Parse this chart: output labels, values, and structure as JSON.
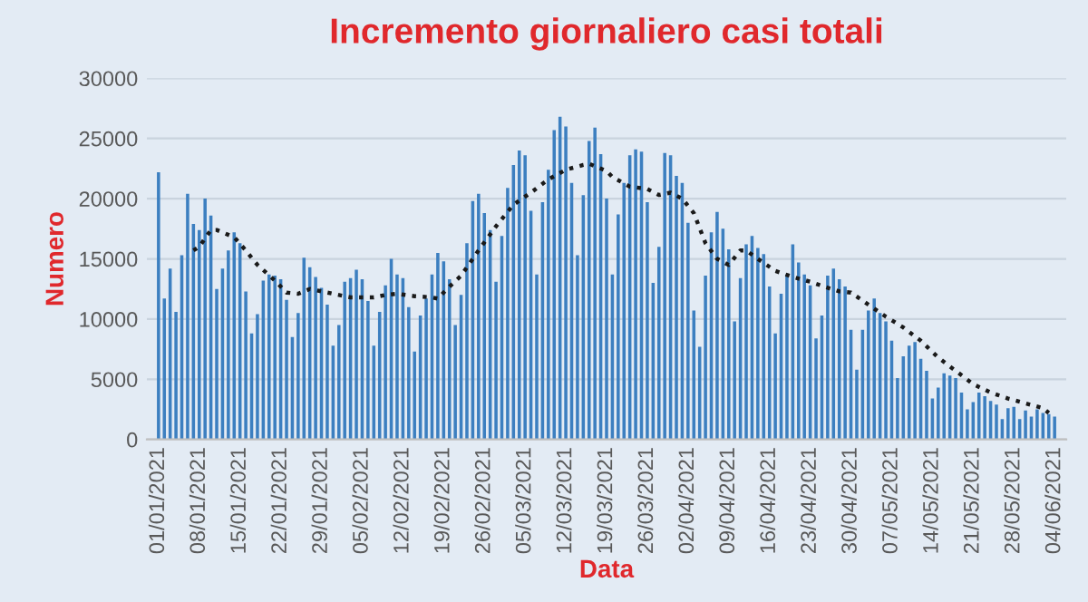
{
  "chart_data": {
    "type": "bar",
    "title": "Incremento giornaliero casi totali",
    "xlabel": "Data",
    "ylabel": "Numero",
    "ylim": [
      0,
      30000
    ],
    "yticks": [
      0,
      5000,
      10000,
      15000,
      20000,
      25000,
      30000
    ],
    "grid": "y",
    "legend": false,
    "xlim": [
      "2020-12-30",
      "2021-06-06"
    ],
    "xticks": [
      {
        "value": "2021-01-01",
        "label": "01/01/2021"
      },
      {
        "value": "2021-01-08",
        "label": "08/01/2021"
      },
      {
        "value": "2021-01-15",
        "label": "15/01/2021"
      },
      {
        "value": "2021-01-22",
        "label": "22/01/2021"
      },
      {
        "value": "2021-01-29",
        "label": "29/01/2021"
      },
      {
        "value": "2021-02-05",
        "label": "05/02/2021"
      },
      {
        "value": "2021-02-12",
        "label": "12/02/2021"
      },
      {
        "value": "2021-02-19",
        "label": "19/02/2021"
      },
      {
        "value": "2021-02-26",
        "label": "26/02/2021"
      },
      {
        "value": "2021-03-05",
        "label": "05/03/2021"
      },
      {
        "value": "2021-03-12",
        "label": "12/03/2021"
      },
      {
        "value": "2021-03-19",
        "label": "19/03/2021"
      },
      {
        "value": "2021-03-26",
        "label": "26/03/2021"
      },
      {
        "value": "2021-04-02",
        "label": "02/04/2021"
      },
      {
        "value": "2021-04-09",
        "label": "09/04/2021"
      },
      {
        "value": "2021-04-16",
        "label": "16/04/2021"
      },
      {
        "value": "2021-04-23",
        "label": "23/04/2021"
      },
      {
        "value": "2021-04-30",
        "label": "30/04/2021"
      },
      {
        "value": "2021-05-07",
        "label": "07/05/2021"
      },
      {
        "value": "2021-05-14",
        "label": "14/05/2021"
      },
      {
        "value": "2021-05-21",
        "label": "21/05/2021"
      },
      {
        "value": "2021-05-28",
        "label": "28/05/2021"
      },
      {
        "value": "2021-06-04",
        "label": "04/06/2021"
      }
    ],
    "series": [
      {
        "color": "#3c7fc0",
        "x": [
          "2021-01-01",
          "2021-01-02",
          "2021-01-03",
          "2021-01-04",
          "2021-01-05",
          "2021-01-06",
          "2021-01-07",
          "2021-01-08",
          "2021-01-09",
          "2021-01-10",
          "2021-01-11",
          "2021-01-12",
          "2021-01-13",
          "2021-01-14",
          "2021-01-15",
          "2021-01-16",
          "2021-01-17",
          "2021-01-18",
          "2021-01-19",
          "2021-01-20",
          "2021-01-21",
          "2021-01-22",
          "2021-01-23",
          "2021-01-24",
          "2021-01-25",
          "2021-01-26",
          "2021-01-27",
          "2021-01-28",
          "2021-01-29",
          "2021-01-30",
          "2021-01-31",
          "2021-02-01",
          "2021-02-02",
          "2021-02-03",
          "2021-02-04",
          "2021-02-05",
          "2021-02-06",
          "2021-02-07",
          "2021-02-08",
          "2021-02-09",
          "2021-02-10",
          "2021-02-11",
          "2021-02-12",
          "2021-02-13",
          "2021-02-14",
          "2021-02-15",
          "2021-02-16",
          "2021-02-17",
          "2021-02-18",
          "2021-02-19",
          "2021-02-20",
          "2021-02-21",
          "2021-02-22",
          "2021-02-23",
          "2021-02-24",
          "2021-02-25",
          "2021-02-26",
          "2021-02-27",
          "2021-02-28",
          "2021-03-01",
          "2021-03-02",
          "2021-03-03",
          "2021-03-04",
          "2021-03-05",
          "2021-03-06",
          "2021-03-07",
          "2021-03-08",
          "2021-03-09",
          "2021-03-10",
          "2021-03-11",
          "2021-03-12",
          "2021-03-13",
          "2021-03-14",
          "2021-03-15",
          "2021-03-16",
          "2021-03-17",
          "2021-03-18",
          "2021-03-19",
          "2021-03-20",
          "2021-03-21",
          "2021-03-22",
          "2021-03-23",
          "2021-03-24",
          "2021-03-25",
          "2021-03-26",
          "2021-03-27",
          "2021-03-28",
          "2021-03-29",
          "2021-03-30",
          "2021-03-31",
          "2021-04-01",
          "2021-04-02",
          "2021-04-03",
          "2021-04-04",
          "2021-04-05",
          "2021-04-06",
          "2021-04-07",
          "2021-04-08",
          "2021-04-09",
          "2021-04-10",
          "2021-04-11",
          "2021-04-12",
          "2021-04-13",
          "2021-04-14",
          "2021-04-15",
          "2021-04-16",
          "2021-04-17",
          "2021-04-18",
          "2021-04-19",
          "2021-04-20",
          "2021-04-21",
          "2021-04-22",
          "2021-04-23",
          "2021-04-24",
          "2021-04-25",
          "2021-04-26",
          "2021-04-27",
          "2021-04-28",
          "2021-04-29",
          "2021-04-30",
          "2021-05-01",
          "2021-05-02",
          "2021-05-03",
          "2021-05-04",
          "2021-05-05",
          "2021-05-06",
          "2021-05-07",
          "2021-05-08",
          "2021-05-09",
          "2021-05-10",
          "2021-05-11",
          "2021-05-12",
          "2021-05-13",
          "2021-05-14",
          "2021-05-15",
          "2021-05-16",
          "2021-05-17",
          "2021-05-18",
          "2021-05-19",
          "2021-05-20",
          "2021-05-21",
          "2021-05-22",
          "2021-05-23",
          "2021-05-24",
          "2021-05-25",
          "2021-05-26",
          "2021-05-27",
          "2021-05-28",
          "2021-05-29",
          "2021-05-30",
          "2021-05-31",
          "2021-06-01",
          "2021-06-02",
          "2021-06-03",
          "2021-06-04"
        ],
        "values": [
          22200,
          11700,
          14200,
          10600,
          15300,
          20400,
          17900,
          17400,
          20000,
          18600,
          12500,
          14200,
          15700,
          17200,
          16300,
          12300,
          8800,
          10400,
          13200,
          13700,
          13600,
          13300,
          11600,
          8500,
          10500,
          15100,
          14300,
          13500,
          12600,
          11200,
          7800,
          9500,
          13100,
          13400,
          14100,
          13300,
          11500,
          7800,
          10600,
          12800,
          15000,
          13700,
          13400,
          11000,
          7300,
          10300,
          11700,
          13700,
          15500,
          14800,
          13300,
          9500,
          12000,
          16300,
          19800,
          20400,
          18800,
          17400,
          13100,
          16900,
          20900,
          22800,
          24000,
          23600,
          19000,
          13700,
          19700,
          22400,
          25700,
          26800,
          26000,
          21300,
          15300,
          20300,
          24800,
          25900,
          23700,
          20000,
          13700,
          18700,
          21300,
          23600,
          24100,
          23900,
          19700,
          13000,
          16000,
          23800,
          23600,
          21900,
          21300,
          18000,
          10700,
          7700,
          13600,
          17200,
          18900,
          17500,
          15800,
          9800,
          13400,
          16200,
          16900,
          15900,
          15400,
          12700,
          8800,
          12100,
          13700,
          16200,
          14700,
          13700,
          12800,
          8400,
          10300,
          13600,
          14200,
          13300,
          12700,
          9100,
          5800,
          9100,
          10700,
          11700,
          10500,
          9800,
          8200,
          5100,
          6900,
          7800,
          8100,
          6700,
          5700,
          3400,
          4300,
          5500,
          5300,
          5100,
          3900,
          2500,
          3100,
          3900,
          3600,
          3200,
          2900,
          1700,
          2600,
          2700,
          1700,
          2400,
          1900,
          2500,
          2200,
          2100,
          1900
        ]
      },
      {
        "type": "line",
        "color": "#1a1a1a",
        "line_style": "dotted",
        "x": [
          "2021-01-07",
          "2021-01-08",
          "2021-01-10",
          "2021-01-11",
          "2021-01-14",
          "2021-01-16",
          "2021-01-18",
          "2021-01-21",
          "2021-01-23",
          "2021-01-25",
          "2021-01-27",
          "2021-01-30",
          "2021-02-03",
          "2021-02-07",
          "2021-02-09",
          "2021-02-11",
          "2021-02-14",
          "2021-02-17",
          "2021-02-18",
          "2021-02-20",
          "2021-02-22",
          "2021-02-25",
          "2021-02-28",
          "2021-03-03",
          "2021-03-06",
          "2021-03-09",
          "2021-03-12",
          "2021-03-15",
          "2021-03-16",
          "2021-03-19",
          "2021-03-20",
          "2021-03-23",
          "2021-03-26",
          "2021-03-28",
          "2021-03-30",
          "2021-04-01",
          "2021-04-03",
          "2021-04-05",
          "2021-04-07",
          "2021-04-09",
          "2021-04-11",
          "2021-04-12",
          "2021-04-14",
          "2021-04-17",
          "2021-04-20",
          "2021-04-23",
          "2021-04-26",
          "2021-04-28",
          "2021-04-30",
          "2021-05-03",
          "2021-05-06",
          "2021-05-09",
          "2021-05-12",
          "2021-05-15",
          "2021-05-18",
          "2021-05-21",
          "2021-05-24",
          "2021-05-27",
          "2021-05-30",
          "2021-06-02",
          "2021-06-03"
        ],
        "values": [
          15700,
          16000,
          17400,
          17400,
          16800,
          15700,
          14500,
          13200,
          12200,
          12100,
          12500,
          12200,
          11800,
          11800,
          12000,
          12100,
          11900,
          11800,
          11700,
          12700,
          13600,
          15700,
          17700,
          19500,
          20500,
          21600,
          22400,
          22800,
          22900,
          22300,
          21800,
          21000,
          20800,
          20300,
          20500,
          20000,
          18800,
          16300,
          15000,
          14500,
          15700,
          15700,
          15000,
          14000,
          13500,
          13100,
          12600,
          12300,
          12200,
          11200,
          10200,
          9300,
          8200,
          6800,
          5700,
          4600,
          3900,
          3400,
          3000,
          2600,
          2200
        ]
      }
    ]
  }
}
